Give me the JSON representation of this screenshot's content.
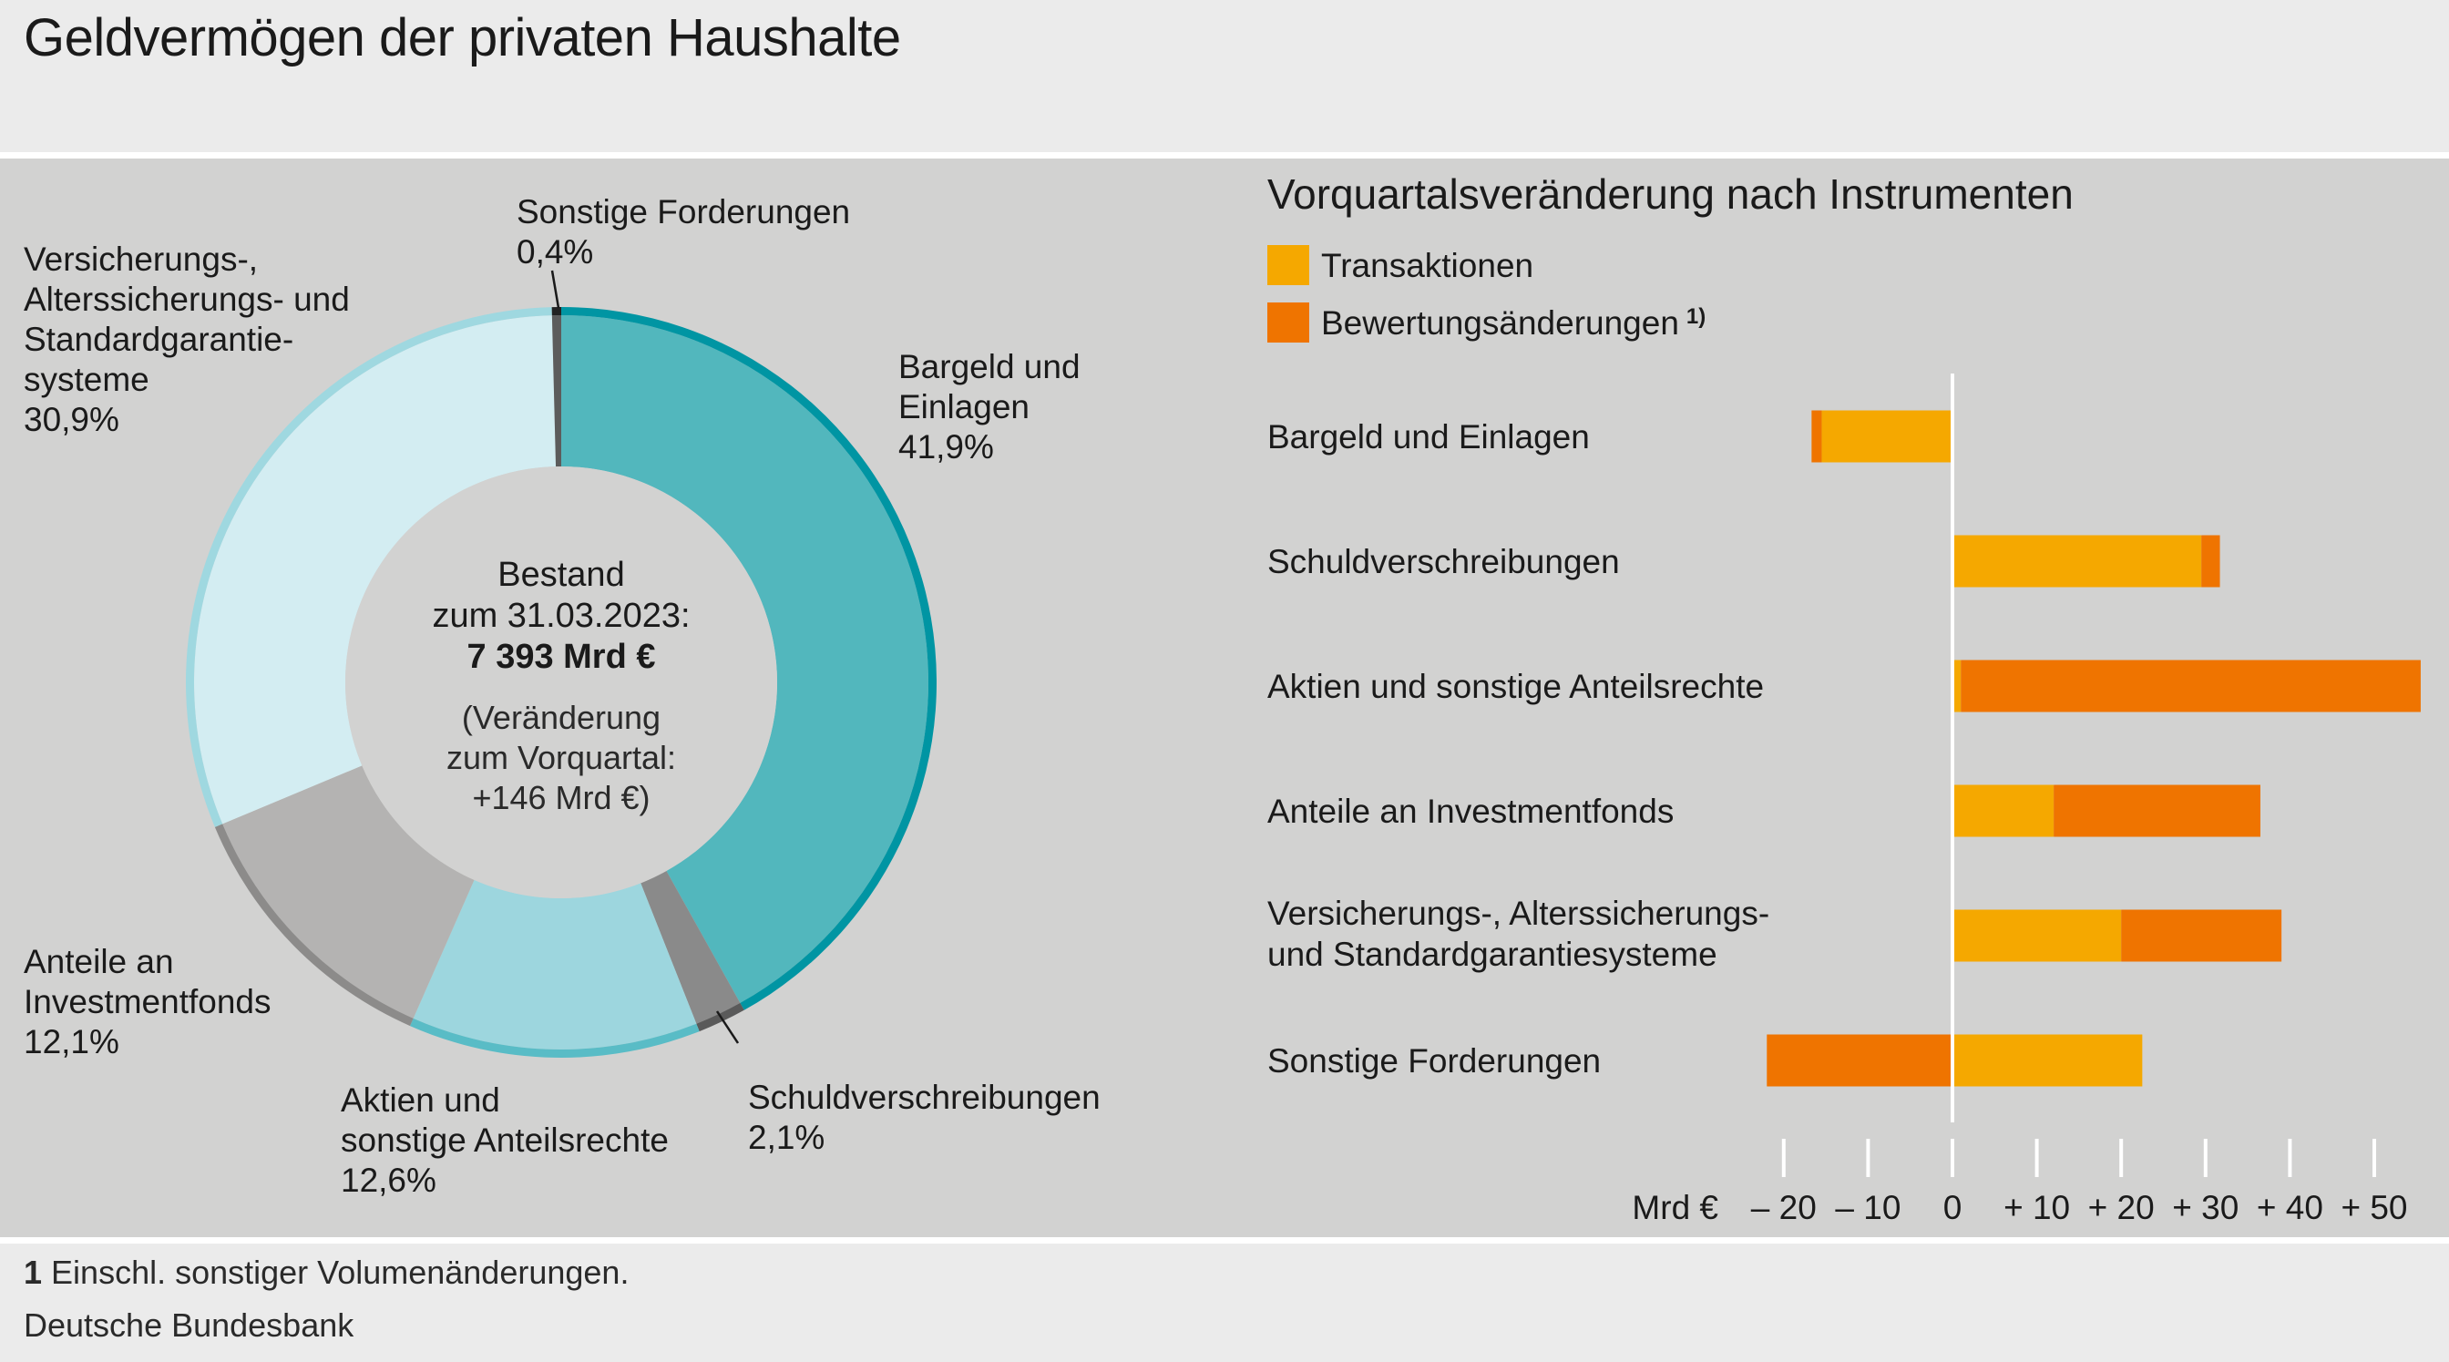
{
  "title": "Geldvermögen der privaten Haushalte",
  "donut": {
    "center": {
      "line1": "Bestand",
      "line2": "zum 31.03.2023:",
      "line3": "7 393 Mrd €",
      "line4": "(Veränderung",
      "line5": "zum Vorquartal:",
      "line6": "+146 Mrd €)"
    },
    "segments": [
      {
        "label_lines": [
          "Bargeld und",
          "Einlagen"
        ],
        "value_text": "41,9%",
        "value": 41.9,
        "fill": "#52b7bd",
        "rim": "#0095a3"
      },
      {
        "label_lines": [
          "Schuldverschreibungen"
        ],
        "value_text": "2,1%",
        "value": 2.1,
        "fill": "#8a8a8a",
        "rim": "#5a5a5a"
      },
      {
        "label_lines": [
          "Aktien und",
          "sonstige Anteilsrechte"
        ],
        "value_text": "12,6%",
        "value": 12.6,
        "fill": "#9dd6de",
        "rim": "#59bcc6"
      },
      {
        "label_lines": [
          "Anteile an",
          "Investmentfonds"
        ],
        "value_text": "12,1%",
        "value": 12.1,
        "fill": "#b4b3b2",
        "rim": "#8c8b8a"
      },
      {
        "label_lines": [
          "Versicherungs-,",
          "Alterssicherungs- und",
          "Standardgarantie-",
          "systeme"
        ],
        "value_text": "30,9%",
        "value": 30.9,
        "fill": "#d3edf2",
        "rim": "#9fd8e0"
      },
      {
        "label_lines": [
          "Sonstige Forderungen"
        ],
        "value_text": "0,4%",
        "value": 0.4,
        "fill": "#5c5c5c",
        "rim": "#222222"
      }
    ]
  },
  "chart_data": {
    "type": "bar",
    "title": "Vorquartalsveränderung nach Instrumenten",
    "xlabel": "Mrd €",
    "xlim": [
      -22,
      56
    ],
    "ticks": [
      -20,
      -10,
      0,
      10,
      20,
      30,
      40,
      50
    ],
    "tick_labels": [
      "– 20",
      "– 10",
      "0",
      "+ 10",
      "+ 20",
      "+ 30",
      "+ 40",
      "+ 50"
    ],
    "legend": [
      {
        "name": "Transaktionen",
        "color": "#f5a800"
      },
      {
        "name": "Bewertungsänderungen",
        "sup": "1)",
        "color": "#ef7400"
      }
    ],
    "categories": [
      [
        "Bargeld und Einlagen"
      ],
      [
        "Schuldverschreibungen"
      ],
      [
        "Aktien und sonstige Anteilsrechte"
      ],
      [
        "Anteile an Investmentfonds"
      ],
      [
        "Versicherungs-, Alterssicherungs-",
        "und Standardgarantiesysteme"
      ],
      [
        "Sonstige Forderungen"
      ]
    ],
    "series": [
      {
        "name": "Transaktionen",
        "values": [
          -15.5,
          29.5,
          1.0,
          12.0,
          20.0,
          22.5
        ]
      },
      {
        "name": "Bewertungsänderungen",
        "values": [
          -1.2,
          2.2,
          54.5,
          24.5,
          19.0,
          -22.0
        ]
      }
    ]
  },
  "footnotes": {
    "note_number": "1",
    "note_text": " Einschl. sonstiger Volumenänderungen.",
    "source": "Deutsche Bundesbank"
  }
}
